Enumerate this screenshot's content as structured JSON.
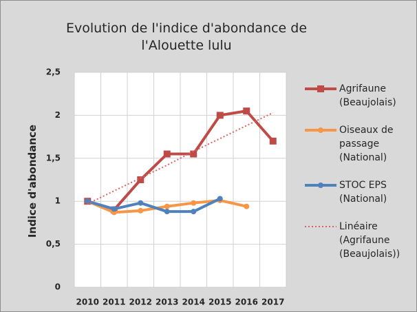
{
  "chart_data": {
    "type": "line",
    "title": "Evolution de l'indice d'abondance de l'Alouette lulu",
    "y_label": "Indice d'abondance",
    "categories": [
      "2010",
      "2011",
      "2012",
      "2013",
      "2014",
      "2015",
      "2016",
      "2017"
    ],
    "ylim": [
      0,
      2.5
    ],
    "yticks": [
      0,
      {
        "value": 0.5,
        "label": "0,5"
      },
      1,
      {
        "value": 1.5,
        "label": "1,5"
      },
      2,
      {
        "value": 2.5,
        "label": "2,5"
      }
    ],
    "grid": true,
    "legend": "right",
    "series": [
      {
        "name": "Agrifaune (Beaujolais)",
        "color": "#be4b48",
        "marker": "square",
        "values": [
          1.0,
          0.9,
          1.25,
          1.55,
          1.55,
          2.0,
          2.05,
          1.7
        ]
      },
      {
        "name": "Oiseaux de passage (National)",
        "color": "#f79646",
        "marker": "circle",
        "values": [
          1.0,
          0.87,
          0.89,
          0.94,
          0.98,
          1.01,
          0.94,
          null
        ]
      },
      {
        "name": "STOC EPS (National)",
        "color": "#4f81bd",
        "marker": "circle",
        "values": [
          1.0,
          0.91,
          0.98,
          0.88,
          0.88,
          1.03,
          null,
          null
        ]
      },
      {
        "name": "Linéaire (Agrifaune (Beaujolais))",
        "color": "#d9625f",
        "dash": "dotted",
        "marker": "none",
        "values": [
          0.97,
          1.12,
          1.27,
          1.42,
          1.58,
          1.73,
          1.88,
          2.03
        ]
      }
    ]
  }
}
